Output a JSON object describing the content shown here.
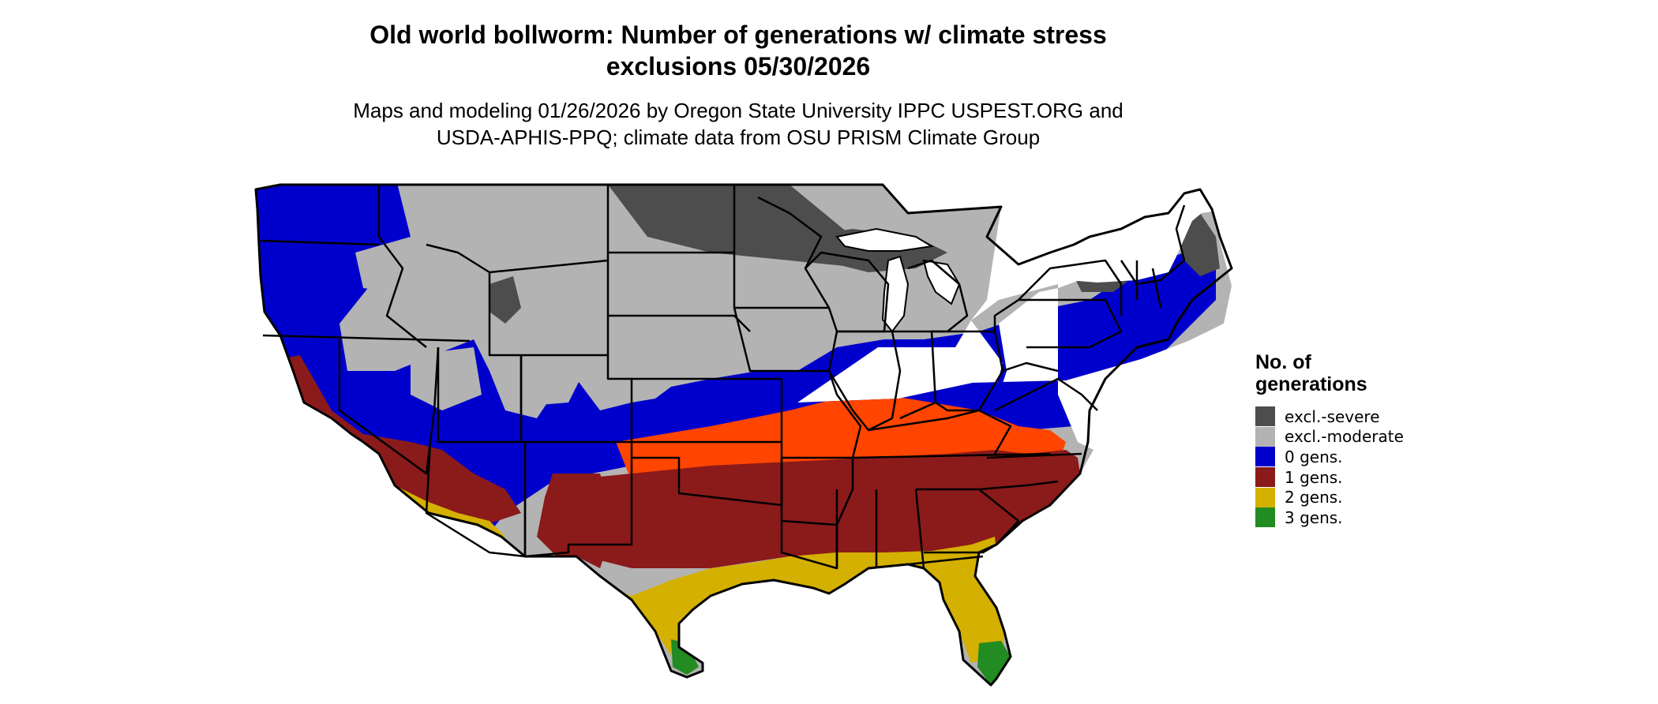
{
  "title": "Old world bollworm: Number of generations w/ climate stress\nexclusions 05/30/2026",
  "subtitle": "Maps and modeling 01/26/2026 by Oregon State University IPPC USPEST.ORG and\nUSDA-APHIS-PPQ; climate data from OSU PRISM Climate Group",
  "legend": {
    "title": "No. of\ngenerations",
    "items": [
      {
        "label": "excl.-severe",
        "color": "#4d4d4d"
      },
      {
        "label": "excl.-moderate",
        "color": "#b3b3b3"
      },
      {
        "label": "0 gens.",
        "color": "#0000cd"
      },
      {
        "label": "1 gens.",
        "color": "#8b1a1a"
      },
      {
        "label": "2 gens.",
        "color": "#d4b000"
      },
      {
        "label": "3 gens.",
        "color": "#228b22"
      }
    ]
  },
  "colors": {
    "excl_severe": "#4d4d4d",
    "excl_moderate": "#b3b3b3",
    "zero_gens": "#0000cd",
    "one_gens": "#8b1a1a",
    "one_gens_highlight": "#ff4500",
    "two_gens": "#d4b000",
    "three_gens": "#228b22",
    "border": "#000000",
    "water": "#ffffff"
  }
}
